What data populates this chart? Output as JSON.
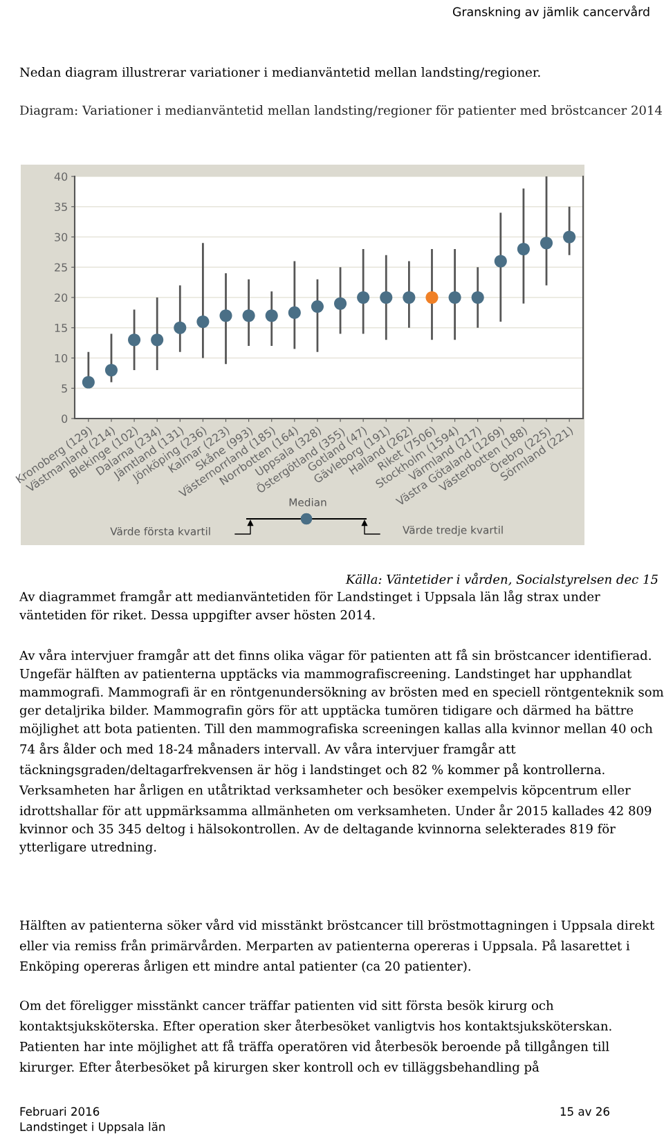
{
  "chart_data": {
    "type": "scatter",
    "title": "Diagram: Variationer i medianväntetid mellan landsting/regioner för patienter med bröstcancer 2014",
    "categories": [
      "Kronoberg (129)",
      "Västmanland (214)",
      "Blekinge (102)",
      "Dalarna (234)",
      "Jämtland (131)",
      "Jönköping (236)",
      "Kalmar (223)",
      "Skåne (993)",
      "Västernorrland (185)",
      "Norrbotten (164)",
      "Uppsala (328)",
      "Östergötland (355)",
      "Gotland (47)",
      "Gävleborg (191)",
      "Halland (262)",
      "Riket (7506)",
      "Stockholm (1594)",
      "Värmland (217)",
      "Västra Götaland (1269)",
      "Västerbotten (188)",
      "Örebro (225)",
      "Sörmland (221)"
    ],
    "values": [
      6,
      8,
      13,
      13,
      15,
      16,
      17,
      17,
      17,
      17.5,
      18.5,
      19,
      20,
      20,
      20,
      20,
      20,
      20,
      26,
      28,
      29,
      30
    ],
    "errors": [
      [
        6,
        11
      ],
      [
        6,
        14
      ],
      [
        8,
        18
      ],
      [
        8,
        20
      ],
      [
        11,
        22
      ],
      [
        10,
        29
      ],
      [
        9,
        24
      ],
      [
        12,
        23
      ],
      [
        12,
        21
      ],
      [
        11.5,
        26
      ],
      [
        11,
        23
      ],
      [
        14,
        25
      ],
      [
        14,
        28
      ],
      [
        13,
        27
      ],
      [
        15,
        26
      ],
      [
        13,
        28
      ],
      [
        13,
        28
      ],
      [
        15,
        25
      ],
      [
        16,
        34
      ],
      [
        19,
        38
      ],
      [
        22,
        40
      ],
      [
        27,
        35
      ]
    ],
    "colors": [
      "#4a6f86",
      "#4a6f86",
      "#4a6f86",
      "#4a6f86",
      "#4a6f86",
      "#4a6f86",
      "#4a6f86",
      "#4a6f86",
      "#4a6f86",
      "#4a6f86",
      "#4a6f86",
      "#4a6f86",
      "#4a6f86",
      "#4a6f86",
      "#4a6f86",
      "#f08026",
      "#4a6f86",
      "#4a6f86",
      "#4a6f86",
      "#4a6f86",
      "#4a6f86",
      "#4a6f86"
    ],
    "ylim": [
      0,
      40
    ],
    "yticks": [
      0,
      5,
      10,
      15,
      20,
      25,
      30,
      35,
      40
    ],
    "grid": "y",
    "marker": "circle",
    "annotations": [
      "Granskning av jämlik cancervård",
      "Nedan diagram illustrerar variationer i medianväntetid mellan landsting/regioner.",
      "Median",
      "Värde första kvartil",
      "Värde tredje kvartil",
      "Källa: Väntetider i vården, Socialstyrelsen dec 15",
      "Av diagrammet framgår att medianväntetiden för Landstinget i Uppsala län låg strax under väntetiden för riket. Dessa uppgifter avser hösten 2014.",
      "Av våra intervjuer framgår att det finns olika vägar för patienten att få sin bröstcancer identifierad. Ungefär hälften av patienterna upptäcks via mammografiscreening. Landstinget har upphandlat mammografi. Mammografi är en röntgenundersökning av brösten med en speciell röntgenteknik som ger detaljrika bilder. Mammografin görs för att upptäcka tumören tidigare och därmed ha bättre möjlighet att bota patienten. Till den mammografiska screeningen kallas alla kvinnor mellan 40 och 74 års ålder och med 18-24 månaders intervall. Av våra intervjuer framgår att täckningsgraden/deltagarfrekvensen är hög i landstinget och 82 % kommer på kontrollerna. Verksamheten har årligen en utåtriktad verksamheter och besöker exempelvis köpcentrum eller idrottshallar för att uppmärksamma allmänheten om verksamheten. Under år 2015 kallades 42 809 kvinnor och 35 345 deltog i hälsokontrollen. Av de deltagande kvinnorna selekterades 819 för ytterligare utredning.",
      "Hälften av patienterna söker vård vid misstänkt bröstcancer till bröstmottagningen i Uppsala direkt eller via remiss från primärvården. Merparten av patienterna opereras i Uppsala. På lasarettet i Enköping opereras årligen ett mindre antal patienter (ca 20 patienter).",
      "Om det föreligger misstänkt cancer träffar patienten vid sitt första besök kirurg och kontaktsjuksköterska. Efter operation sker återbesöket vanligtvis hos kontaktsjuksköterskan. Patienten har inte möjlighet att få träffa operatören vid återbesök beroende på tillgången till kirurger. Efter återbesöket på kirurgen sker kontroll och ev tilläggsbehandling på",
      "Februari 2016",
      "Landstinget i Uppsala län",
      "15 av 26"
    ]
  }
}
